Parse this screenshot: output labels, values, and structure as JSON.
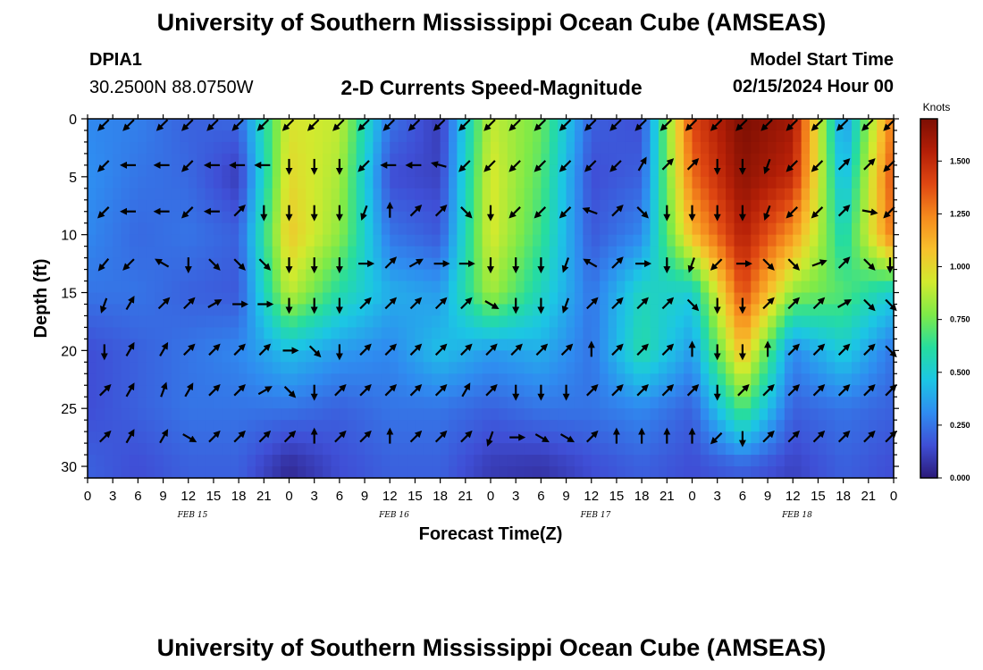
{
  "header": {
    "title": "University of Southern Mississippi Ocean Cube (AMSEAS)",
    "station_id": "DPIA1",
    "coordinates": "30.2500N  88.0750W",
    "plot_title": "2-D Currents Speed-Magnitude",
    "model_start_label": "Model Start Time",
    "model_start_value": "02/15/2024 Hour 00"
  },
  "footer": {
    "title": "University of Southern Mississippi Ocean Cube (AMSEAS)"
  },
  "chart_data": {
    "type": "heatmap",
    "title": "2-D Currents Speed-Magnitude",
    "xlabel": "Forecast Time(Z)",
    "ylabel": "Depth (ft)",
    "x_ticks": [
      "0",
      "3",
      "6",
      "9",
      "12",
      "15",
      "18",
      "21",
      "0",
      "3",
      "6",
      "9",
      "12",
      "15",
      "18",
      "21",
      "0",
      "3",
      "6",
      "9",
      "12",
      "15",
      "18",
      "21",
      "0",
      "3",
      "6",
      "9",
      "12",
      "15",
      "18",
      "21",
      "0"
    ],
    "date_labels": [
      {
        "label": "FEB 15",
        "x_hour": 12.5
      },
      {
        "label": "FEB 16",
        "x_hour": 36.5
      },
      {
        "label": "FEB 17",
        "x_hour": 60.5
      },
      {
        "label": "FEB 18",
        "x_hour": 84.5
      }
    ],
    "x_range_hours": [
      0,
      96
    ],
    "y_ticks": [
      0,
      5,
      10,
      15,
      20,
      25,
      30
    ],
    "ylim": [
      0,
      31
    ],
    "colorbar": {
      "label": "Knots",
      "range": [
        0,
        1.7
      ],
      "ticks": [
        "0.000",
        "0.250",
        "0.500",
        "0.750",
        "1.000",
        "1.250",
        "1.500"
      ],
      "tick_values": [
        0,
        0.25,
        0.5,
        0.75,
        1.0,
        1.25,
        1.5
      ],
      "colors": [
        "#2b1a78",
        "#3f4fd6",
        "#2f8cf0",
        "#1cc6e4",
        "#26dd9e",
        "#7eea48",
        "#d2ea2e",
        "#f7c02c",
        "#f58a1d",
        "#df4712",
        "#b41f07",
        "#7c0e03"
      ]
    },
    "speed_grid": {
      "hours": [
        0,
        6,
        12,
        18,
        24,
        30,
        36,
        42,
        48,
        54,
        60,
        66,
        72,
        78,
        84,
        90,
        96
      ],
      "depths_ft": [
        0,
        5,
        10,
        15,
        20,
        25,
        30
      ],
      "values_knots": [
        [
          0.3,
          0.28,
          0.2,
          0.22,
          0.95,
          0.9,
          0.25,
          0.1,
          0.9,
          0.75,
          0.2,
          0.15,
          1.4,
          1.7,
          1.6,
          0.3,
          1.3
        ],
        [
          0.32,
          0.25,
          0.22,
          0.1,
          1.0,
          0.85,
          0.15,
          0.12,
          0.95,
          0.7,
          0.15,
          0.2,
          1.3,
          1.65,
          1.5,
          0.4,
          1.4
        ],
        [
          0.3,
          0.22,
          0.25,
          0.2,
          1.05,
          0.8,
          0.25,
          0.18,
          0.95,
          0.65,
          0.18,
          0.3,
          1.1,
          1.55,
          1.2,
          0.55,
          1.3
        ],
        [
          0.25,
          0.25,
          0.2,
          0.18,
          0.9,
          0.6,
          0.4,
          0.35,
          0.85,
          0.55,
          0.25,
          0.55,
          0.5,
          1.4,
          0.8,
          0.7,
          0.5
        ],
        [
          0.15,
          0.2,
          0.25,
          0.3,
          0.45,
          0.35,
          0.3,
          0.45,
          0.35,
          0.4,
          0.25,
          0.6,
          0.35,
          1.1,
          0.3,
          0.5,
          0.25
        ],
        [
          0.15,
          0.2,
          0.25,
          0.25,
          0.25,
          0.2,
          0.25,
          0.25,
          0.2,
          0.25,
          0.25,
          0.3,
          0.2,
          0.7,
          0.2,
          0.25,
          0.2
        ],
        [
          0.2,
          0.15,
          0.2,
          0.2,
          0.05,
          0.15,
          0.2,
          0.2,
          0.1,
          0.08,
          0.15,
          0.2,
          0.15,
          0.2,
          0.12,
          0.2,
          0.15
        ]
      ]
    },
    "arrow_grid": {
      "hours": [
        2,
        5,
        9,
        12,
        15,
        18,
        21,
        24,
        27,
        30,
        33,
        36,
        39,
        42,
        45,
        48,
        51,
        54,
        57,
        60,
        63,
        66,
        69,
        72,
        75,
        78,
        81,
        84,
        87,
        90,
        93,
        96
      ],
      "depths_ft": [
        0,
        4,
        8,
        12.5,
        16,
        20,
        23.5,
        27.5
      ],
      "directions_deg": [
        [
          225,
          225,
          225,
          225,
          225,
          225,
          225,
          225,
          225,
          225,
          225,
          225,
          225,
          225,
          225,
          225,
          225,
          225,
          225,
          225,
          225,
          225,
          225,
          225,
          225,
          225,
          225,
          225,
          225,
          225,
          225,
          225
        ],
        [
          225,
          270,
          270,
          225,
          270,
          270,
          270,
          180,
          180,
          180,
          225,
          270,
          270,
          285,
          225,
          225,
          225,
          225,
          225,
          225,
          225,
          30,
          45,
          45,
          180,
          180,
          200,
          225,
          225,
          45,
          45,
          225
        ],
        [
          225,
          270,
          270,
          225,
          270,
          45,
          180,
          180,
          180,
          180,
          200,
          0,
          45,
          45,
          135,
          180,
          225,
          225,
          225,
          290,
          45,
          135,
          180,
          180,
          180,
          180,
          200,
          225,
          225,
          45,
          100,
          225
        ],
        [
          220,
          225,
          300,
          180,
          135,
          135,
          135,
          180,
          180,
          180,
          90,
          45,
          60,
          90,
          90,
          180,
          180,
          180,
          200,
          300,
          45,
          90,
          180,
          200,
          225,
          90,
          135,
          135,
          70,
          45,
          135,
          180
        ],
        [
          200,
          30,
          45,
          45,
          60,
          90,
          90,
          180,
          180,
          180,
          45,
          45,
          45,
          45,
          45,
          120,
          180,
          180,
          200,
          45,
          45,
          45,
          45,
          135,
          180,
          180,
          45,
          45,
          45,
          60,
          135,
          135
        ],
        [
          180,
          30,
          30,
          45,
          45,
          45,
          45,
          90,
          135,
          180,
          45,
          45,
          45,
          45,
          45,
          45,
          45,
          45,
          45,
          0,
          45,
          45,
          45,
          0,
          180,
          180,
          0,
          45,
          45,
          45,
          45,
          135
        ],
        [
          45,
          30,
          20,
          30,
          45,
          45,
          60,
          135,
          180,
          45,
          45,
          45,
          45,
          45,
          30,
          45,
          180,
          180,
          180,
          45,
          45,
          45,
          45,
          45,
          180,
          45,
          45,
          45,
          45,
          45,
          45,
          45
        ],
        [
          45,
          30,
          30,
          120,
          45,
          45,
          45,
          45,
          0,
          45,
          45,
          0,
          45,
          45,
          45,
          200,
          90,
          120,
          120,
          45,
          0,
          0,
          0,
          0,
          225,
          180,
          45,
          45,
          45,
          45,
          45,
          45
        ]
      ]
    }
  }
}
